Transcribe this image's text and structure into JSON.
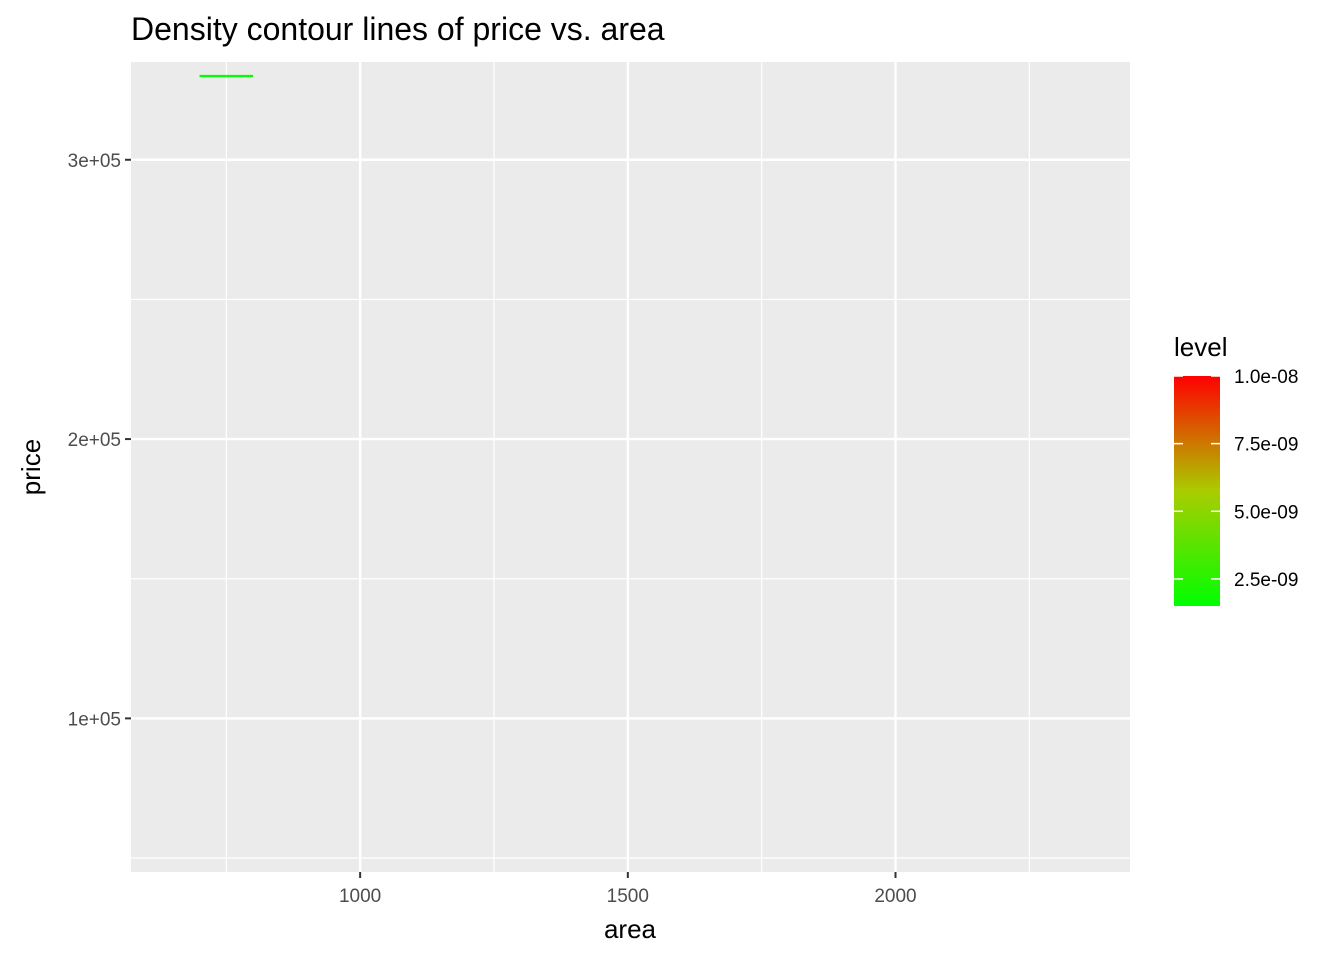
{
  "chart_data": {
    "type": "contour",
    "title": "Density contour lines of price vs. area",
    "xlabel": "area",
    "ylabel": "price",
    "xlim": [
      572,
      2438
    ],
    "ylim": [
      45000,
      335000
    ],
    "x_ticks": [
      1000,
      1500,
      2000
    ],
    "x_tick_labels": [
      "1000",
      "1500",
      "2000"
    ],
    "y_ticks": [
      100000,
      200000,
      300000
    ],
    "y_tick_labels": [
      "1e+05",
      "2e+05",
      "3e+05"
    ],
    "grid": true,
    "legend": {
      "title": "level",
      "position": "right",
      "range": [
        1.5e-09,
        1e-08
      ],
      "ticks": [
        1e-08,
        7.5e-09,
        5e-09,
        2.5e-09
      ],
      "tick_labels": [
        "1.0e-08",
        "7.5e-09",
        "5.0e-09",
        "2.5e-09"
      ],
      "color_low": "#00ff00",
      "color_high": "#ff0000"
    },
    "series": [
      {
        "level": 1.5e-09,
        "points": [
          [
            700,
            330000
          ],
          [
            800,
            330000
          ]
        ]
      }
    ]
  }
}
